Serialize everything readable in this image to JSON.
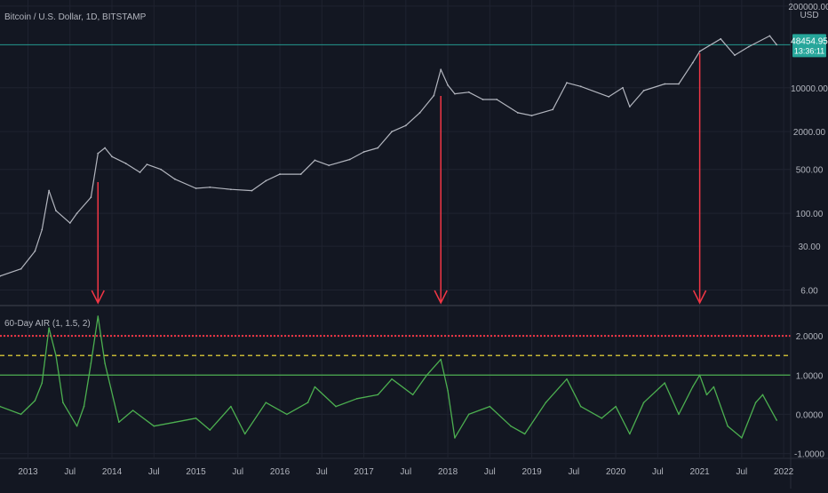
{
  "chart_data": [
    {
      "type": "line",
      "title": "Bitcoin / U.S. Dollar, 1D, BITSTAMP",
      "scale": "log",
      "unit_label": "USD",
      "ylim": [
        3.5,
        250000
      ],
      "yticks": [
        {
          "value": 200000,
          "label": "200000.00"
        },
        {
          "value": 10000,
          "label": "10000.00"
        },
        {
          "value": 2000,
          "label": "2000.00"
        },
        {
          "value": 500,
          "label": "500.00"
        },
        {
          "value": 100,
          "label": "100.00"
        },
        {
          "value": 30,
          "label": "30.00"
        },
        {
          "value": 6,
          "label": "6.00"
        }
      ],
      "x": [
        "2012-09",
        "2012-12",
        "2013-02",
        "2013-03",
        "2013-04",
        "2013-05",
        "2013-07",
        "2013-08",
        "2013-10",
        "2013-11",
        "2013-12",
        "2014-01",
        "2014-03",
        "2014-05",
        "2014-06",
        "2014-08",
        "2014-10",
        "2015-01",
        "2015-03",
        "2015-06",
        "2015-09",
        "2015-11",
        "2016-01",
        "2016-04",
        "2016-06",
        "2016-08",
        "2016-11",
        "2017-01",
        "2017-03",
        "2017-05",
        "2017-07",
        "2017-09",
        "2017-11",
        "2017-12",
        "2018-01",
        "2018-02",
        "2018-04",
        "2018-06",
        "2018-08",
        "2018-11",
        "2019-01",
        "2019-04",
        "2019-06",
        "2019-08",
        "2019-12",
        "2020-02",
        "2020-03",
        "2020-05",
        "2020-08",
        "2020-10",
        "2020-12",
        "2021-01",
        "2021-04",
        "2021-06",
        "2021-08",
        "2021-11",
        "2021-12"
      ],
      "values": [
        10,
        13,
        25,
        55,
        230,
        110,
        70,
        100,
        180,
        900,
        1100,
        800,
        620,
        450,
        600,
        500,
        350,
        250,
        260,
        240,
        230,
        330,
        420,
        420,
        700,
        580,
        720,
        950,
        1100,
        2000,
        2500,
        4000,
        7500,
        19500,
        11000,
        8000,
        8500,
        6500,
        6500,
        4000,
        3600,
        4500,
        12000,
        10500,
        7200,
        10000,
        5000,
        9000,
        11500,
        11500,
        25000,
        38000,
        60000,
        33000,
        45000,
        67000,
        48454.95
      ],
      "last_price": {
        "value": 48454.95,
        "label": "48454.95",
        "countdown": "13:36:11"
      },
      "colors": {
        "candles": "#b2b5be",
        "last_price": "#26a69a",
        "arrows": "#f23645"
      },
      "annotations": [
        {
          "type": "arrow-down",
          "x": "2013-11"
        },
        {
          "type": "arrow-down",
          "x": "2017-12"
        },
        {
          "type": "arrow-down",
          "x": "2021-01"
        }
      ]
    },
    {
      "type": "line",
      "title": "60-Day AIR (1, 1.5, 2)",
      "ylim": [
        -1.1,
        2.75
      ],
      "yticks": [
        {
          "value": 2,
          "label": "2.0000"
        },
        {
          "value": 1,
          "label": "1.0000"
        },
        {
          "value": 0,
          "label": "0.0000"
        },
        {
          "value": -1,
          "label": "-1.0000"
        }
      ],
      "levels": [
        {
          "value": 1,
          "style": "solid",
          "color": "#4caf50"
        },
        {
          "value": 1.5,
          "style": "dashed",
          "color": "#ffeb3b"
        },
        {
          "value": 2,
          "style": "dotted",
          "color": "#f23645"
        }
      ],
      "series_color": "#4caf50",
      "x": [
        "2012-09",
        "2012-12",
        "2013-02",
        "2013-03",
        "2013-04",
        "2013-05",
        "2013-06",
        "2013-08",
        "2013-09",
        "2013-10",
        "2013-11",
        "2013-12",
        "2014-02",
        "2014-04",
        "2014-07",
        "2014-10",
        "2015-01",
        "2015-03",
        "2015-06",
        "2015-08",
        "2015-11",
        "2016-02",
        "2016-05",
        "2016-06",
        "2016-09",
        "2016-12",
        "2017-03",
        "2017-05",
        "2017-08",
        "2017-10",
        "2017-12",
        "2018-01",
        "2018-02",
        "2018-04",
        "2018-07",
        "2018-10",
        "2018-12",
        "2019-03",
        "2019-06",
        "2019-08",
        "2019-11",
        "2020-01",
        "2020-03",
        "2020-05",
        "2020-08",
        "2020-10",
        "2020-12",
        "2021-01",
        "2021-02",
        "2021-03",
        "2021-05",
        "2021-07",
        "2021-09",
        "2021-10",
        "2021-12"
      ],
      "values": [
        0.2,
        0.0,
        0.35,
        0.8,
        2.2,
        1.5,
        0.3,
        -0.3,
        0.2,
        1.3,
        2.5,
        1.3,
        -0.2,
        0.1,
        -0.3,
        -0.2,
        -0.1,
        -0.4,
        0.2,
        -0.5,
        0.3,
        0.0,
        0.3,
        0.7,
        0.2,
        0.4,
        0.5,
        0.9,
        0.5,
        1.0,
        1.4,
        0.6,
        -0.6,
        0.0,
        0.2,
        -0.3,
        -0.5,
        0.3,
        0.9,
        0.2,
        -0.1,
        0.2,
        -0.5,
        0.3,
        0.8,
        0.0,
        0.7,
        1.0,
        0.5,
        0.7,
        -0.3,
        -0.6,
        0.3,
        0.5,
        -0.15
      ]
    }
  ],
  "xaxis": {
    "ticks": [
      {
        "date": "2013-01",
        "label": "2013"
      },
      {
        "date": "2013-07",
        "label": "Jul"
      },
      {
        "date": "2014-01",
        "label": "2014"
      },
      {
        "date": "2014-07",
        "label": "Jul"
      },
      {
        "date": "2015-01",
        "label": "2015"
      },
      {
        "date": "2015-07",
        "label": "Jul"
      },
      {
        "date": "2016-01",
        "label": "2016"
      },
      {
        "date": "2016-07",
        "label": "Jul"
      },
      {
        "date": "2017-01",
        "label": "2017"
      },
      {
        "date": "2017-07",
        "label": "Jul"
      },
      {
        "date": "2018-01",
        "label": "2018"
      },
      {
        "date": "2018-07",
        "label": "Jul"
      },
      {
        "date": "2019-01",
        "label": "2019"
      },
      {
        "date": "2019-07",
        "label": "Jul"
      },
      {
        "date": "2020-01",
        "label": "2020"
      },
      {
        "date": "2020-07",
        "label": "Jul"
      },
      {
        "date": "2021-01",
        "label": "2021"
      },
      {
        "date": "2021-07",
        "label": "Jul"
      },
      {
        "date": "2022-01",
        "label": "2022"
      }
    ],
    "range": [
      "2012-09",
      "2022-02"
    ]
  },
  "colors": {
    "background": "#131722",
    "grid": "#1f2330",
    "text": "#b2b5be",
    "divider": "#2a2e39"
  },
  "grid": true
}
